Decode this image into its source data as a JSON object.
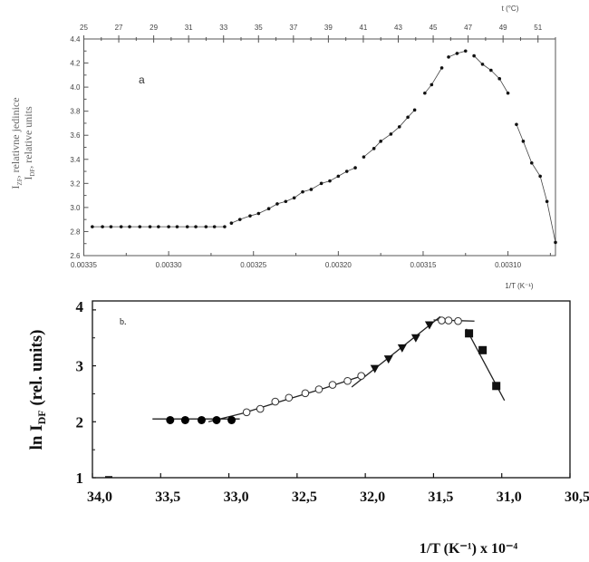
{
  "chart_data": [
    {
      "type": "scatter",
      "panel_label": "a",
      "xlabel": "1/T (K⁻¹)",
      "ylabel_line1": "I",
      "ylabel_line1_sub": "ZF",
      "ylabel_line1_rest": ", relativne jedinice",
      "ylabel_line2": "I",
      "ylabel_line2_sub": "DF",
      "ylabel_line2_rest": ", relative units",
      "top_xlabel": "t (°C)",
      "xlim": [
        0.00335,
        0.003072
      ],
      "ylim": [
        2.6,
        4.4
      ],
      "xticks": [
        0.00335,
        0.0033,
        0.00325,
        0.0032,
        0.00315,
        0.0031
      ],
      "xtick_labels": [
        "0.00335",
        "0.00330",
        "0.00325",
        "0.00320",
        "0.00315",
        "0.00310"
      ],
      "yticks": [
        2.6,
        2.8,
        3.0,
        3.2,
        3.4,
        3.6,
        3.8,
        4.0,
        4.2,
        4.4
      ],
      "ytick_labels": [
        "2.6",
        "2.8",
        "3.0",
        "3.2",
        "3.4",
        "3.6",
        "3.8",
        "4.0",
        "4.2",
        "4.4"
      ],
      "top_xlim_celsius": [
        25,
        52
      ],
      "top_xticks": [
        25,
        27,
        29,
        31,
        33,
        35,
        37,
        39,
        41,
        43,
        45,
        47,
        49,
        51
      ],
      "top_xtick_labels": [
        "25",
        "27",
        "29",
        "31",
        "33",
        "35",
        "37",
        "39",
        "41",
        "43",
        "45",
        "47",
        "49",
        "51"
      ],
      "segments": [
        {
          "x": [
            0.003345,
            0.003339,
            0.003334,
            0.003328,
            0.003323,
            0.003317,
            0.003311,
            0.003306,
            0.0033,
            0.003295,
            0.003289,
            0.003284,
            0.003278,
            0.003273,
            0.003267
          ],
          "y": [
            2.84,
            2.84,
            2.84,
            2.84,
            2.84,
            2.84,
            2.84,
            2.84,
            2.84,
            2.84,
            2.84,
            2.84,
            2.84,
            2.84,
            2.84
          ]
        },
        {
          "x": [
            0.003263,
            0.003258,
            0.003252,
            0.003247,
            0.003241,
            0.003236,
            0.003231,
            0.003226,
            0.003221,
            0.003216,
            0.00321,
            0.003205,
            0.0032,
            0.003195,
            0.00319
          ],
          "y": [
            2.87,
            2.9,
            2.93,
            2.95,
            2.99,
            3.03,
            3.05,
            3.08,
            3.13,
            3.15,
            3.2,
            3.22,
            3.26,
            3.3,
            3.33
          ]
        },
        {
          "x": [
            0.003185,
            0.003179,
            0.003175,
            0.003169,
            0.003164,
            0.003159,
            0.003155
          ],
          "y": [
            3.42,
            3.49,
            3.55,
            3.61,
            3.67,
            3.75,
            3.81
          ]
        },
        {
          "x": [
            0.003149,
            0.003145,
            0.003139
          ],
          "y": [
            3.95,
            4.02,
            4.16
          ]
        },
        {
          "x": [
            0.003135,
            0.00313,
            0.003125
          ],
          "y": [
            4.25,
            4.28,
            4.3
          ]
        },
        {
          "x": [
            0.00312,
            0.003115,
            0.00311,
            0.003105,
            0.0031
          ],
          "y": [
            4.26,
            4.19,
            4.14,
            4.07,
            3.95
          ]
        },
        {
          "x": [
            0.003095,
            0.003091,
            0.003086,
            0.003081,
            0.003077,
            0.003072
          ],
          "y": [
            3.69,
            3.55,
            3.37,
            3.26,
            3.05,
            2.71
          ]
        }
      ]
    },
    {
      "type": "scatter",
      "panel_label": "b.",
      "xlabel": "1/T  (K⁻¹) x 10⁻⁴",
      "ylabel": "ln I",
      "ylabel_sub": "DF",
      "ylabel_rest": " (rel. units)",
      "xlim": [
        34.0,
        30.5
      ],
      "ylim": [
        1,
        4.16
      ],
      "xticks": [
        34.0,
        33.5,
        33.0,
        32.5,
        32.0,
        31.5,
        31.0,
        30.5
      ],
      "xtick_labels": [
        "34,0",
        "33,5",
        "33,0",
        "32,5",
        "32,0",
        "31,5",
        "31,0",
        "30,5"
      ],
      "yticks": [
        1,
        2,
        3,
        4
      ],
      "ytick_labels": [
        "1",
        "2",
        "3",
        "4"
      ],
      "series": [
        {
          "name": "filled circles",
          "marker": "filled-circle",
          "x": [
            33.43,
            33.32,
            33.2,
            33.09,
            32.98
          ],
          "y": [
            2.03,
            2.03,
            2.03,
            2.03,
            2.03
          ]
        },
        {
          "name": "open circles",
          "marker": "open-circle",
          "x": [
            32.87,
            32.77,
            32.66,
            32.56,
            32.44,
            32.34,
            32.24,
            32.13,
            32.03
          ],
          "y": [
            2.17,
            2.23,
            2.36,
            2.43,
            2.51,
            2.58,
            2.66,
            2.73,
            2.82
          ]
        },
        {
          "name": "triangles",
          "marker": "triangle-down",
          "x": [
            31.93,
            31.83,
            31.73,
            31.63,
            31.53
          ],
          "y": [
            2.95,
            3.12,
            3.32,
            3.5,
            3.73
          ]
        },
        {
          "name": "open circles peak",
          "marker": "open-circle",
          "x": [
            31.44,
            31.39,
            31.32
          ],
          "y": [
            3.81,
            3.81,
            3.8
          ]
        },
        {
          "name": "squares",
          "marker": "square",
          "x": [
            31.24,
            31.14,
            31.04
          ],
          "y": [
            3.58,
            3.28,
            2.64
          ]
        }
      ],
      "fit_lines": [
        {
          "x": [
            33.56,
            32.92
          ],
          "y": [
            2.05,
            2.05
          ]
        },
        {
          "x": [
            33.15,
            32.9,
            32.6,
            32.3,
            32.0
          ],
          "y": [
            2.0,
            2.15,
            2.38,
            2.6,
            2.84
          ]
        },
        {
          "x": [
            32.1,
            31.45
          ],
          "y": [
            2.62,
            3.88
          ]
        },
        {
          "x": [
            31.5,
            31.2
          ],
          "y": [
            3.82,
            3.8
          ]
        },
        {
          "x": [
            31.26,
            30.98
          ],
          "y": [
            3.66,
            2.38
          ]
        }
      ]
    }
  ]
}
